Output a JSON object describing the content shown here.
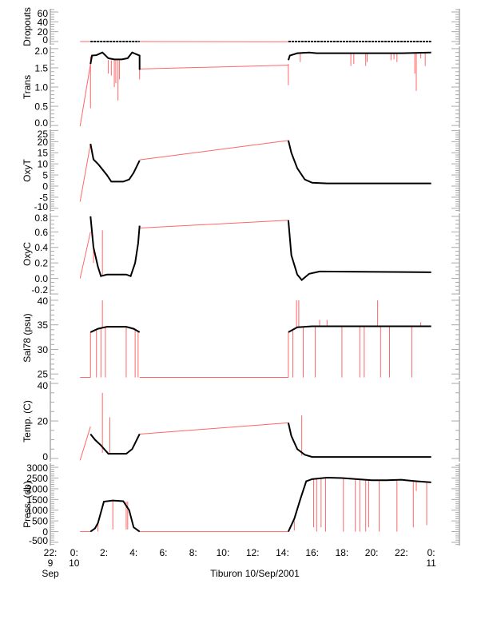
{
  "chart_data": {
    "type": "line",
    "title": "",
    "xlabel": "Tiburon 10/Sep/2001",
    "xunit": "hours since 10 Sep 00:00",
    "xlim": [
      -1.6,
      25.9
    ],
    "xticks": [
      {
        "h": -1.6,
        "l1": "22:",
        "l2": "9",
        "l3": "Sep"
      },
      {
        "h": 0,
        "l1": "0:",
        "l2": "10",
        "l3": ""
      },
      {
        "h": 2,
        "l1": "2:",
        "l2": "",
        "l3": ""
      },
      {
        "h": 4,
        "l1": "4:",
        "l2": "",
        "l3": ""
      },
      {
        "h": 6,
        "l1": "6:",
        "l2": "",
        "l3": ""
      },
      {
        "h": 8,
        "l1": "8:",
        "l2": "",
        "l3": ""
      },
      {
        "h": 10,
        "l1": "10:",
        "l2": "",
        "l3": ""
      },
      {
        "h": 12,
        "l1": "12:",
        "l2": "",
        "l3": ""
      },
      {
        "h": 14,
        "l1": "14:",
        "l2": "",
        "l3": ""
      },
      {
        "h": 16,
        "l1": "16:",
        "l2": "",
        "l3": ""
      },
      {
        "h": 18,
        "l1": "18:",
        "l2": "",
        "l3": ""
      },
      {
        "h": 20,
        "l1": "20:",
        "l2": "",
        "l3": ""
      },
      {
        "h": 22,
        "l1": "22:",
        "l2": "",
        "l3": ""
      },
      {
        "h": 24,
        "l1": "0:",
        "l2": "11",
        "l3": ""
      }
    ],
    "colors": {
      "data": "#000000",
      "interp": "#ff6666",
      "axis": "#aaaaaa"
    },
    "panels": [
      {
        "ylabel": "Dropouts",
        "ylim": [
          -6.5,
          66.5
        ],
        "yticks": [
          0,
          20,
          40,
          60
        ],
        "minor": 5,
        "black": [
          [
            [
              1.1,
              0
            ],
            [
              4.4,
              0
            ]
          ],
          [
            [
              14.4,
              0
            ],
            [
              24.0,
              0
            ]
          ]
        ],
        "red": [
          [
            [
              0.4,
              0
            ],
            [
              1.1,
              0
            ]
          ],
          [
            [
              4.4,
              0
            ],
            [
              14.4,
              -0.5
            ]
          ]
        ],
        "spikes": []
      },
      {
        "ylabel": "Trans",
        "ylim": [
          -0.06,
          2.06
        ],
        "yticks": [
          0.0,
          0.5,
          1.0,
          1.5,
          2.0
        ],
        "ytick_labels": [
          "0.0",
          "0.5",
          "1.0",
          "1.5",
          "2.0"
        ],
        "minor": 0.1,
        "black": [
          [
            [
              1.1,
              1.6
            ],
            [
              1.2,
              1.82
            ],
            [
              1.5,
              1.83
            ],
            [
              1.9,
              1.9
            ],
            [
              2.3,
              1.75
            ],
            [
              2.7,
              1.72
            ],
            [
              3.2,
              1.72
            ],
            [
              3.6,
              1.75
            ],
            [
              3.9,
              1.9
            ],
            [
              4.2,
              1.85
            ],
            [
              4.4,
              1.82
            ],
            [
              4.4,
              1.45
            ]
          ],
          [
            [
              14.4,
              1.7
            ],
            [
              14.5,
              1.82
            ],
            [
              15.0,
              1.88
            ],
            [
              15.8,
              1.9
            ],
            [
              16.3,
              1.88
            ],
            [
              18,
              1.88
            ],
            [
              20,
              1.88
            ],
            [
              22,
              1.88
            ],
            [
              24,
              1.9
            ]
          ]
        ],
        "red": [
          [
            [
              0.4,
              -0.02
            ],
            [
              1.1,
              1.6
            ]
          ],
          [
            [
              4.4,
              1.47
            ],
            [
              14.4,
              1.57
            ]
          ]
        ],
        "spikes": [
          [
            1.1,
            1.8,
            0.45
          ],
          [
            2.3,
            1.7,
            1.35
          ],
          [
            2.5,
            1.7,
            1.3
          ],
          [
            2.7,
            1.7,
            1.0
          ],
          [
            2.8,
            1.7,
            1.1
          ],
          [
            2.95,
            1.7,
            0.65
          ],
          [
            3.05,
            1.7,
            1.2
          ],
          [
            4.4,
            1.6,
            1.2
          ],
          [
            14.4,
            1.6,
            1.05
          ],
          [
            15.2,
            1.88,
            1.65
          ],
          [
            18.6,
            1.88,
            1.55
          ],
          [
            18.8,
            1.88,
            1.6
          ],
          [
            19.6,
            1.88,
            1.55
          ],
          [
            19.7,
            1.88,
            1.65
          ],
          [
            21.3,
            1.88,
            1.7
          ],
          [
            21.5,
            1.88,
            1.72
          ],
          [
            21.7,
            1.88,
            1.65
          ],
          [
            22.9,
            1.88,
            1.35
          ],
          [
            23.0,
            1.88,
            0.9
          ],
          [
            23.3,
            1.88,
            1.75
          ],
          [
            23.6,
            1.88,
            1.55
          ]
        ]
      },
      {
        "ylabel": "OxyT",
        "ylim": [
          -11.5,
          25.5
        ],
        "yticks": [
          -10,
          -5,
          0,
          5,
          10,
          15,
          20,
          25
        ],
        "minor": 1,
        "black": [
          [
            [
              1.1,
              19
            ],
            [
              1.3,
              12
            ],
            [
              1.6,
              10
            ],
            [
              2.2,
              5
            ],
            [
              2.5,
              2
            ],
            [
              3.3,
              2
            ],
            [
              3.7,
              3
            ],
            [
              4.0,
              6
            ],
            [
              4.4,
              11.5
            ]
          ],
          [
            [
              14.4,
              20.5
            ],
            [
              14.6,
              15
            ],
            [
              15,
              8
            ],
            [
              15.5,
              3
            ],
            [
              16,
              1.5
            ],
            [
              17,
              1.2
            ],
            [
              24,
              1.2
            ]
          ]
        ],
        "red": [
          [
            [
              0.4,
              -7
            ],
            [
              1.1,
              19
            ]
          ],
          [
            [
              4.4,
              11.8
            ],
            [
              14.4,
              20.5
            ]
          ]
        ],
        "spikes": []
      },
      {
        "ylabel": "OxyC",
        "ylim": [
          -0.21,
          0.84
        ],
        "yticks": [
          -0.2,
          0.0,
          0.2,
          0.4,
          0.6,
          0.8
        ],
        "ytick_labels": [
          "-0.2",
          "0.0",
          "0.2",
          "0.4",
          "0.6",
          "0.8"
        ],
        "minor": 0.05,
        "black": [
          [
            [
              1.1,
              0.8
            ],
            [
              1.3,
              0.4
            ],
            [
              1.6,
              0.15
            ],
            [
              1.8,
              0.03
            ],
            [
              2.2,
              0.05
            ],
            [
              3.5,
              0.05
            ],
            [
              3.8,
              0.03
            ],
            [
              4.1,
              0.2
            ],
            [
              4.3,
              0.45
            ],
            [
              4.4,
              0.68
            ]
          ],
          [
            [
              14.4,
              0.75
            ],
            [
              14.6,
              0.3
            ],
            [
              15,
              0.05
            ],
            [
              15.3,
              -0.02
            ],
            [
              15.8,
              0.06
            ],
            [
              16.5,
              0.09
            ],
            [
              24,
              0.08
            ]
          ]
        ],
        "red": [
          [
            [
              0.4,
              0
            ],
            [
              1.1,
              0.6
            ]
          ],
          [
            [
              4.4,
              0.65
            ],
            [
              14.4,
              0.75
            ]
          ]
        ],
        "spikes": [
          [
            1.9,
            0.05,
            0.62
          ],
          [
            1.3,
            0.2,
            0.45
          ]
        ]
      },
      {
        "ylabel": "Sal78 (psu)",
        "ylim": [
          23.9,
          40.8
        ],
        "yticks": [
          25,
          30,
          35,
          40
        ],
        "minor": 1,
        "black": [
          [
            [
              1.1,
              33.5
            ],
            [
              1.6,
              34.2
            ],
            [
              2.2,
              34.6
            ],
            [
              3.5,
              34.6
            ],
            [
              4.0,
              34.2
            ],
            [
              4.4,
              33.5
            ]
          ],
          [
            [
              14.4,
              33.5
            ],
            [
              15,
              34.5
            ],
            [
              16,
              34.7
            ],
            [
              24,
              34.7
            ]
          ]
        ],
        "red": [
          [
            [
              0.4,
              24.3
            ],
            [
              1.1,
              24.3
            ]
          ],
          [
            [
              4.4,
              24.3
            ],
            [
              14.4,
              24.3
            ]
          ]
        ],
        "spikes": [
          [
            1.1,
            33.5,
            24.3
          ],
          [
            1.5,
            34,
            24.3
          ],
          [
            1.8,
            34.3,
            24.3
          ],
          [
            1.9,
            34.3,
            40
          ],
          [
            2.1,
            34.4,
            24.3
          ],
          [
            3.5,
            34.6,
            24.3
          ],
          [
            4.1,
            34,
            24.3
          ],
          [
            4.3,
            33.7,
            24.3
          ],
          [
            14.4,
            33.5,
            24.3
          ],
          [
            14.7,
            34,
            24.3
          ],
          [
            14.95,
            34.3,
            40
          ],
          [
            15.1,
            34.4,
            40
          ],
          [
            15.4,
            34.5,
            24.3
          ],
          [
            16.2,
            34.7,
            24.3
          ],
          [
            16.5,
            34.7,
            36
          ],
          [
            17,
            34.7,
            36
          ],
          [
            18,
            34.7,
            24.3
          ],
          [
            19.2,
            34.7,
            24.3
          ],
          [
            19.5,
            34.7,
            24.3
          ],
          [
            20.4,
            34.7,
            40
          ],
          [
            20.6,
            34.7,
            24.3
          ],
          [
            21.2,
            34.7,
            24.3
          ],
          [
            22.7,
            34.7,
            24.3
          ],
          [
            23.3,
            34.7,
            35.5
          ]
        ]
      },
      {
        "ylabel": "Temp. (C)",
        "ylim": [
          -1.7,
          41.3
        ],
        "yticks": [
          0,
          20,
          40
        ],
        "minor": 5,
        "black": [
          [
            [
              1.1,
              13
            ],
            [
              1.4,
              10
            ],
            [
              1.8,
              7
            ],
            [
              2.3,
              2.5
            ],
            [
              3.5,
              2.5
            ],
            [
              3.9,
              5
            ],
            [
              4.4,
              13
            ]
          ],
          [
            [
              14.4,
              19
            ],
            [
              14.6,
              12
            ],
            [
              15,
              5
            ],
            [
              15.5,
              2
            ],
            [
              16,
              0.8
            ],
            [
              24,
              0.8
            ]
          ]
        ],
        "red": [
          [
            [
              0.4,
              -1
            ],
            [
              1.1,
              17
            ]
          ],
          [
            [
              4.4,
              13
            ],
            [
              14.4,
              19
            ]
          ]
        ],
        "spikes": [
          [
            1.9,
            3,
            35
          ],
          [
            2.4,
            2.5,
            22
          ],
          [
            15.3,
            1.5,
            23
          ]
        ]
      },
      {
        "ylabel": "Press. (db)",
        "ylim": [
          -650,
          3190
        ],
        "yticks": [
          -500,
          0,
          500,
          1000,
          1500,
          2000,
          2500,
          3000
        ],
        "minor": 100,
        "black": [
          [
            [
              1.1,
              0
            ],
            [
              1.4,
              150
            ],
            [
              1.6,
              400
            ],
            [
              2.0,
              1400
            ],
            [
              2.6,
              1450
            ],
            [
              3.3,
              1420
            ],
            [
              3.7,
              1000
            ],
            [
              4.0,
              200
            ],
            [
              4.4,
              0
            ]
          ],
          [
            [
              14.4,
              0
            ],
            [
              14.8,
              600
            ],
            [
              15.2,
              1500
            ],
            [
              15.6,
              2350
            ],
            [
              16,
              2450
            ],
            [
              17,
              2520
            ],
            [
              18,
              2500
            ],
            [
              19,
              2450
            ],
            [
              20,
              2400
            ],
            [
              21,
              2400
            ],
            [
              22,
              2420
            ],
            [
              23,
              2350
            ],
            [
              24,
              2300
            ]
          ]
        ],
        "red": [
          [
            [
              0.4,
              0
            ],
            [
              1.1,
              0
            ]
          ],
          [
            [
              4.4,
              0
            ],
            [
              14.4,
              0
            ]
          ]
        ],
        "spikes": [
          [
            1.6,
            400,
            0
          ],
          [
            2.6,
            1450,
            100
          ],
          [
            3.5,
            1400,
            100
          ],
          [
            3.6,
            1400,
            100
          ],
          [
            14.8,
            500,
            50
          ],
          [
            16.1,
            2450,
            200
          ],
          [
            16.3,
            2450,
            0
          ],
          [
            16.6,
            2500,
            200
          ],
          [
            16.9,
            2500,
            0
          ],
          [
            18.1,
            2500,
            0
          ],
          [
            18.9,
            2450,
            0
          ],
          [
            19.2,
            2450,
            0
          ],
          [
            19.6,
            2450,
            0
          ],
          [
            19.8,
            2450,
            200
          ],
          [
            20.5,
            2400,
            0
          ],
          [
            21.7,
            2400,
            0
          ],
          [
            22.8,
            2400,
            200
          ],
          [
            23.0,
            2400,
            1900
          ],
          [
            23.7,
            2350,
            300
          ]
        ]
      }
    ]
  }
}
